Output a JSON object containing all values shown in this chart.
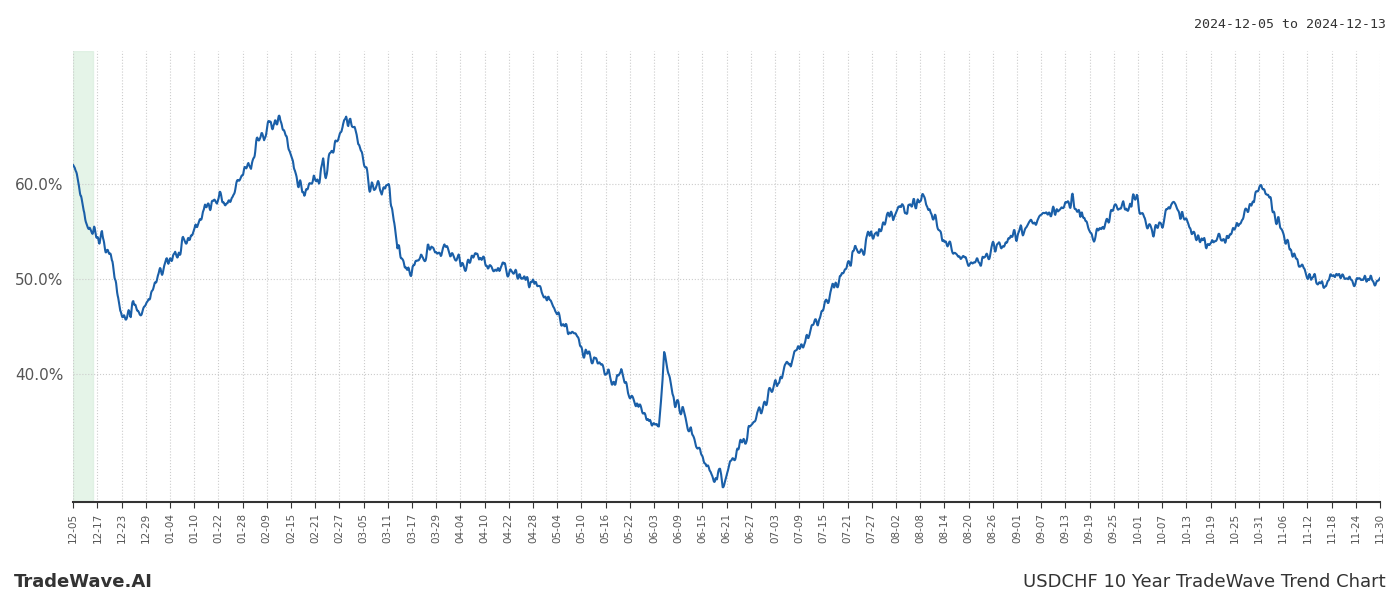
{
  "title_right": "2024-12-05 to 2024-12-13",
  "footer_left": "TradeWave.AI",
  "footer_right": "USDCHF 10 Year TradeWave Trend Chart",
  "line_color": "#1a5fa8",
  "line_width": 1.5,
  "background_color": "#ffffff",
  "highlight_color": "#d4edda",
  "highlight_alpha": 0.6,
  "ylim": [
    0.265,
    0.74
  ],
  "yticks": [
    0.4,
    0.5,
    0.6
  ],
  "ytick_labels": [
    "40.0%",
    "50.0%",
    "60.0%"
  ],
  "grid_color": "#cccccc",
  "x_labels": [
    "12-05",
    "12-17",
    "12-23",
    "12-29",
    "01-04",
    "01-10",
    "01-22",
    "01-28",
    "02-09",
    "02-15",
    "02-21",
    "02-27",
    "03-05",
    "03-11",
    "03-17",
    "03-29",
    "04-04",
    "04-10",
    "04-22",
    "04-28",
    "05-04",
    "05-10",
    "05-16",
    "05-22",
    "06-03",
    "06-09",
    "06-15",
    "06-21",
    "06-27",
    "07-03",
    "07-09",
    "07-15",
    "07-21",
    "07-27",
    "08-02",
    "08-08",
    "08-14",
    "08-20",
    "08-26",
    "09-01",
    "09-07",
    "09-13",
    "09-19",
    "09-25",
    "10-01",
    "10-07",
    "10-13",
    "10-19",
    "10-25",
    "10-31",
    "11-06",
    "11-12",
    "11-18",
    "11-24",
    "11-30"
  ],
  "n_points": 2500
}
